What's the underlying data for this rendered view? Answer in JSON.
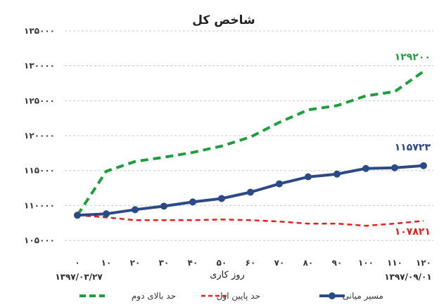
{
  "chart_data": {
    "type": "line",
    "title": "شاخص کل",
    "xlabel": "روز کاری",
    "x": [
      "۰",
      "۱۰",
      "۲۰",
      "۳۰",
      "۴۰",
      "۵۰",
      "۶۰",
      "۷۰",
      "۸۰",
      "۹۰",
      "۱۰۰",
      "۱۱۰",
      "۱۲۰"
    ],
    "x_values": [
      0,
      10,
      20,
      30,
      40,
      50,
      60,
      70,
      80,
      90,
      100,
      110,
      120
    ],
    "date_start": "۱۳۹۷/۰۳/۲۷",
    "date_end": "۱۳۹۷/۰۹/۰۱",
    "ylim": [
      104000,
      135000
    ],
    "y_ticks": [
      105000,
      110000,
      115000,
      120000,
      125000,
      130000,
      135000
    ],
    "y_tick_labels": [
      "۱۰۵۰۰۰",
      "۱۱۰۰۰۰",
      "۱۱۵۰۰۰",
      "۱۲۰۰۰۰",
      "۱۲۵۰۰۰",
      "۱۳۰۰۰۰",
      "۱۳۵۰۰۰"
    ],
    "grid": "horizontal dashed",
    "legend_position": "bottom",
    "series": [
      {
        "name": "حد بالای دوم",
        "color": "#1f9e3e",
        "style": "dashed",
        "values": [
          108600,
          114900,
          116300,
          116900,
          117600,
          118500,
          119800,
          121900,
          123700,
          124300,
          125700,
          126300,
          129200
        ],
        "end_label": "۱۲۹۲۰۰"
      },
      {
        "name": "حد پایین اول",
        "color": "#e2211c",
        "style": "dashed",
        "values": [
          108600,
          108300,
          107900,
          107900,
          107900,
          108000,
          107900,
          107700,
          107400,
          107400,
          107100,
          107400,
          107800
        ],
        "end_label": "۱۰۷۸۲۱"
      },
      {
        "name": "مسیر میانی",
        "color": "#2c4a87",
        "style": "solid-markers",
        "values": [
          108600,
          108800,
          109400,
          109900,
          110500,
          111000,
          111900,
          113100,
          114100,
          114500,
          115300,
          115400,
          115700
        ],
        "end_label": "۱۱۵۷۲۳"
      }
    ]
  }
}
